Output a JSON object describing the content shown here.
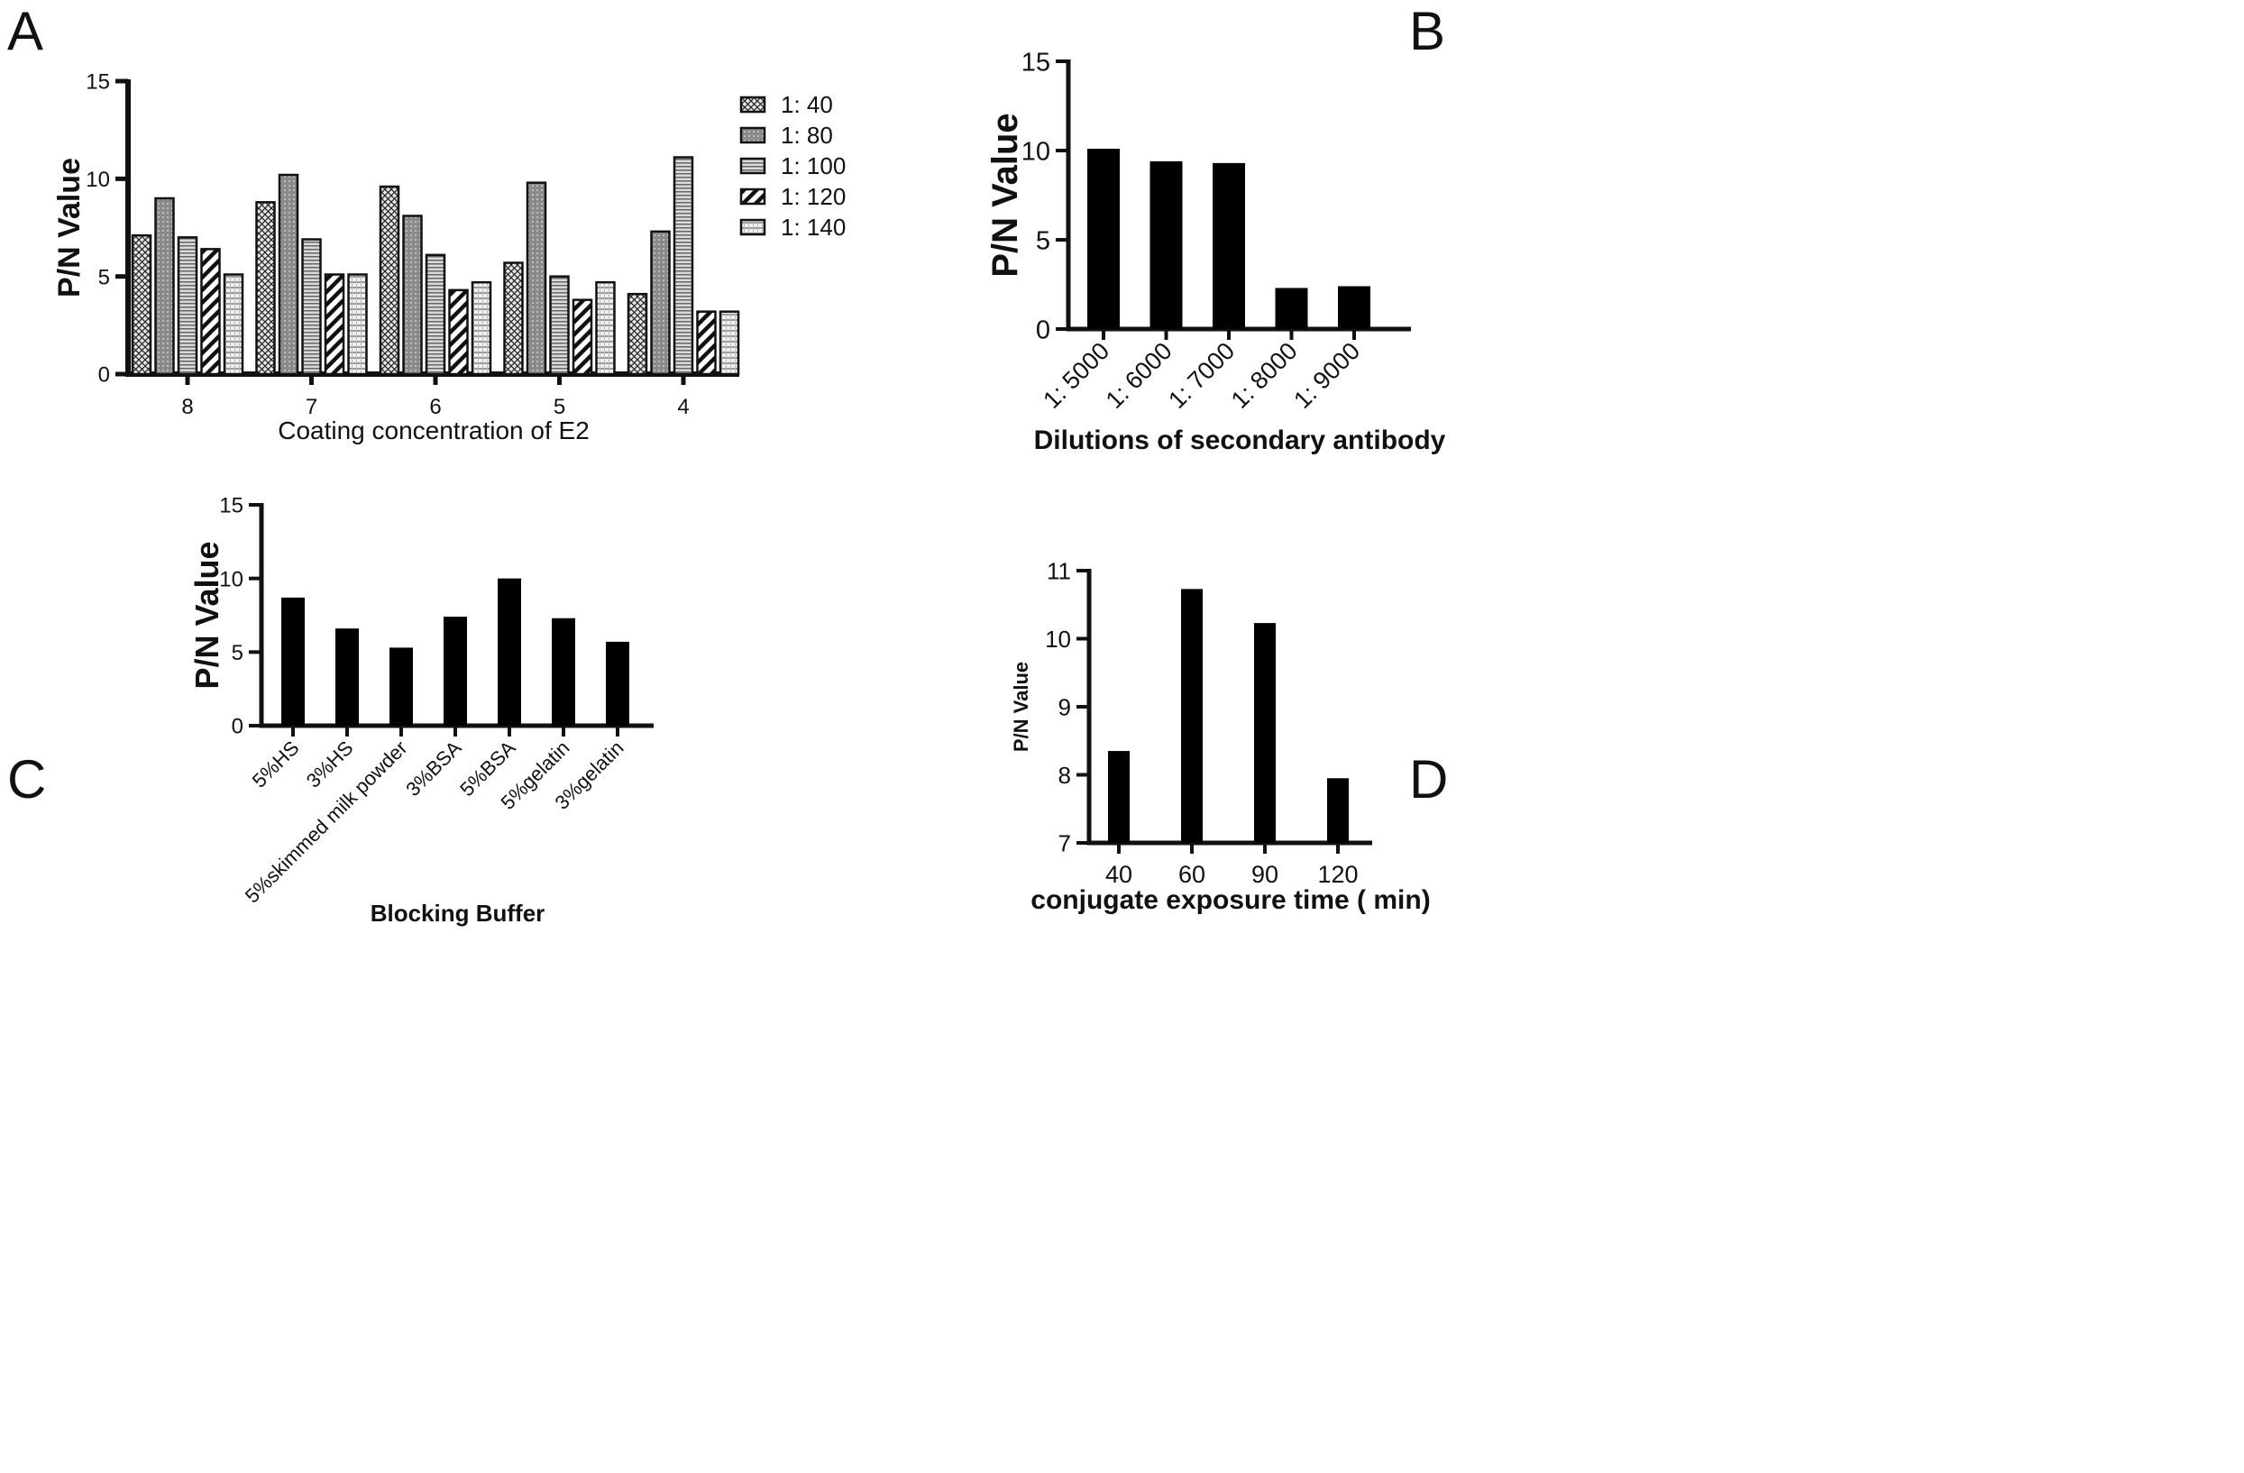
{
  "panels": [
    "A",
    "B",
    "C",
    "D"
  ],
  "chart_data": [
    {
      "panel": "A",
      "type": "bar",
      "xlabel": "Coating concentration of E2",
      "ylabel": "P/N Value",
      "ylim": [
        0,
        15
      ],
      "yticks": [
        "0",
        "5",
        "10",
        "15"
      ],
      "categories": [
        "8",
        "7",
        "6",
        "5",
        "4"
      ],
      "legend_position": "top-right",
      "series": [
        {
          "name": "1: 40",
          "values": [
            7.1,
            8.8,
            9.6,
            5.7,
            4.1
          ]
        },
        {
          "name": "1: 80",
          "values": [
            9.0,
            10.2,
            8.1,
            9.8,
            7.3
          ]
        },
        {
          "name": "1: 100",
          "values": [
            7.0,
            6.9,
            6.1,
            5.0,
            11.1
          ]
        },
        {
          "name": "1: 120",
          "values": [
            6.4,
            5.1,
            4.3,
            3.8,
            3.2
          ]
        },
        {
          "name": "1: 140",
          "values": [
            5.1,
            5.1,
            4.7,
            4.7,
            3.2
          ]
        }
      ]
    },
    {
      "panel": "B",
      "type": "bar",
      "xlabel": "Dilutions of secondary antibody",
      "ylabel": "P/N Value",
      "ylim": [
        0,
        15
      ],
      "yticks": [
        "0",
        "5",
        "10",
        "15"
      ],
      "categories": [
        "1: 5000",
        "1: 6000",
        "1: 7000",
        "1: 8000",
        "1: 9000"
      ],
      "values": [
        10.1,
        9.4,
        9.3,
        2.3,
        2.4
      ]
    },
    {
      "panel": "C",
      "type": "bar",
      "xlabel": "Blocking Buffer",
      "ylabel": "P/N Value",
      "ylim": [
        0,
        15
      ],
      "yticks": [
        "0",
        "5",
        "10",
        "15"
      ],
      "categories": [
        "5%HS",
        "3%HS",
        "5%skimmed milk powder",
        "3%BSA",
        "5%BSA",
        "5%gelatin",
        "3%gelatin"
      ],
      "values": [
        8.7,
        6.6,
        5.3,
        7.4,
        10.0,
        7.3,
        5.7
      ]
    },
    {
      "panel": "D",
      "type": "bar",
      "xlabel": "conjugate exposure time ( min)",
      "ylabel": "P/N Value",
      "ylim": [
        7,
        11
      ],
      "yticks": [
        "7",
        "8",
        "9",
        "10",
        "11"
      ],
      "categories": [
        "40",
        "60",
        "90",
        "120"
      ],
      "values": [
        8.35,
        10.73,
        10.23,
        7.95
      ]
    }
  ]
}
